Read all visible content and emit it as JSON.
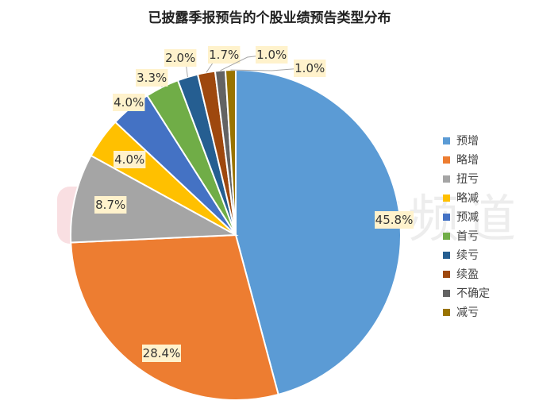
{
  "watermark": {
    "logo_letter": "C",
    "text": "财联社股市频道"
  },
  "chart_data": {
    "type": "pie",
    "title": "已披露季报预告的个股业绩预告类型分布",
    "categories": [
      "预增",
      "略增",
      "扭亏",
      "略减",
      "预减",
      "首亏",
      "续亏",
      "续盈",
      "不确定",
      "减亏"
    ],
    "values": [
      45.8,
      28.4,
      8.7,
      4.0,
      4.0,
      3.3,
      2.0,
      1.7,
      1.0,
      1.0
    ],
    "labels": [
      "45.8%",
      "28.4%",
      "8.7%",
      "4.0%",
      "4.0%",
      "3.3%",
      "2.0%",
      "1.7%",
      "1.0%",
      "1.0%"
    ],
    "colors": [
      "#5B9BD5",
      "#ED7D31",
      "#A5A5A5",
      "#FFC000",
      "#4472C4",
      "#70AD47",
      "#255E91",
      "#9E480E",
      "#636363",
      "#997300"
    ],
    "legend_position": "right",
    "start_angle": "12 o'clock",
    "direction": "clockwise"
  }
}
